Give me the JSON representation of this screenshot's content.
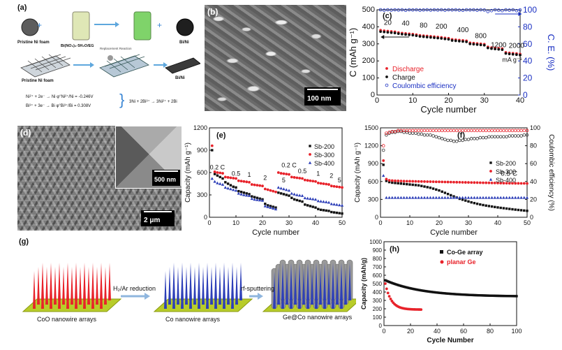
{
  "figure": {
    "panel_labels": [
      "(a)",
      "(b)",
      "(c)",
      "(d)",
      "(e)",
      "(f)",
      "(g)",
      "(h)"
    ]
  },
  "panel_a": {
    "row1": [
      "Pristine Ni foam",
      "Bi(NO₃)₃·5H₂O/EG",
      "Bi/Ni"
    ],
    "row2": [
      "Pristine Ni foam",
      "Replacement Reaction",
      "Bi/Ni"
    ],
    "eq1": "Ni²⁺ + 2e⁻ → Ni   φ°Ni²⁺/Ni = -0.246V",
    "eq2": "Bi³⁺ + 3e⁻ → Bi   φ°Bi³⁺/Bi = 0.308V",
    "eq3": "3Ni + 2Bi³⁺ → 3Ni²⁺ + 2Bi"
  },
  "panel_b": {
    "scalebar": "100 nm"
  },
  "panel_d": {
    "scalebar_inset": "500 nm",
    "scalebar": "2 μm"
  },
  "panel_g": {
    "labels": [
      "CoO nanowire arrays",
      "Co nanowire arrays",
      "Ge@Co nanowire arrays"
    ],
    "steps": [
      "H₂/Ar reduction",
      "rf-sputtering"
    ]
  },
  "colors": {
    "red": "#e8222a",
    "blue": "#2d3fb8",
    "ce_blue": "#1a2fc2",
    "black": "#111111",
    "green": "#b8cc2a"
  },
  "chart_data": [
    {
      "id": "c",
      "type": "scatter",
      "xlabel": "Cycle number",
      "ylabel": "C (mAh g⁻¹)",
      "y2label": "C. E. (%)",
      "xlim": [
        0,
        40
      ],
      "ylim": [
        0,
        500
      ],
      "y2lim": [
        0,
        100
      ],
      "xticks": [
        0,
        10,
        20,
        30,
        40
      ],
      "yticks": [
        0,
        100,
        200,
        300,
        400,
        500
      ],
      "y2ticks": [
        0,
        20,
        40,
        60,
        80,
        100
      ],
      "rate_labels": [
        "20",
        "40",
        "80",
        "200",
        "400",
        "800",
        "1200",
        "2000",
        "mA g⁻¹"
      ],
      "legend": [
        "Discharge",
        "Charge",
        "Coulombic efficiency"
      ],
      "series": [
        {
          "name": "Discharge",
          "values": [
            380,
            377,
            375,
            373,
            371,
            366,
            363,
            361,
            359,
            357,
            354,
            350,
            348,
            346,
            344,
            342,
            340,
            338,
            335,
            333,
            326,
            324,
            322,
            320,
            318,
            306,
            304,
            302,
            300,
            298,
            282,
            278,
            276,
            274,
            272,
            250,
            247,
            245,
            243,
            240
          ]
        },
        {
          "name": "Charge",
          "values": [
            376,
            374,
            372,
            370,
            368,
            364,
            361,
            359,
            357,
            355,
            352,
            348,
            346,
            344,
            342,
            340,
            338,
            336,
            333,
            331,
            324,
            322,
            320,
            318,
            316,
            304,
            302,
            300,
            298,
            296,
            280,
            276,
            274,
            272,
            270,
            248,
            245,
            243,
            241,
            238
          ]
        },
        {
          "name": "Coulombic efficiency",
          "values": [
            100,
            99.5,
            100,
            99.6,
            100,
            99.7,
            100,
            99.4,
            100,
            99.8,
            100,
            99.5,
            99.8,
            100,
            99.6,
            100,
            99.7,
            100,
            99.5,
            100,
            99.8,
            100,
            99.6,
            99.4,
            100,
            99.8,
            100,
            99.5,
            100,
            99.7,
            98,
            99,
            100,
            99.5,
            99,
            100,
            99.5,
            100,
            99,
            99.8
          ]
        }
      ]
    },
    {
      "id": "e",
      "type": "scatter",
      "xlabel": "Cycle number",
      "ylabel": "Capacity (mAh g⁻¹)",
      "xlim": [
        0,
        50
      ],
      "ylim": [
        0,
        1200
      ],
      "xticks": [
        0,
        10,
        20,
        30,
        40,
        50
      ],
      "yticks": [
        0,
        300,
        600,
        900,
        1200
      ],
      "rate_labels": [
        "0.2 C",
        "0.5",
        "1",
        "2",
        "5",
        "0.2 C",
        "0.5",
        "1",
        "2",
        "5"
      ],
      "series": [
        {
          "name": "Sb-200",
          "values": [
            900,
            580,
            560,
            540,
            520,
            470,
            450,
            430,
            410,
            400,
            350,
            340,
            330,
            320,
            310,
            280,
            270,
            260,
            250,
            240,
            180,
            160,
            150,
            140,
            130,
            330,
            320,
            310,
            300,
            290,
            260,
            240,
            230,
            220,
            210,
            170,
            160,
            150,
            140,
            130,
            110,
            100,
            95,
            90,
            85,
            70,
            65,
            60,
            55,
            50
          ]
        },
        {
          "name": "Sb-300",
          "values": [
            960,
            610,
            600,
            595,
            590,
            540,
            535,
            530,
            525,
            520,
            490,
            485,
            480,
            475,
            470,
            440,
            435,
            430,
            425,
            420,
            380,
            370,
            360,
            350,
            340,
            600,
            590,
            585,
            580,
            575,
            540,
            535,
            530,
            525,
            520,
            500,
            495,
            490,
            485,
            480,
            460,
            455,
            450,
            445,
            440,
            420,
            415,
            410,
            405,
            400
          ]
        },
        {
          "name": "Sb-400",
          "values": [
            520,
            480,
            460,
            450,
            440,
            400,
            390,
            380,
            370,
            360,
            320,
            310,
            300,
            295,
            290,
            250,
            240,
            235,
            230,
            225,
            150,
            140,
            130,
            120,
            110,
            400,
            390,
            380,
            370,
            360,
            320,
            310,
            300,
            295,
            290,
            260,
            255,
            250,
            245,
            240,
            220,
            215,
            210,
            205,
            200,
            180,
            175,
            170,
            165,
            160
          ]
        }
      ]
    },
    {
      "id": "f",
      "type": "scatter",
      "xlabel": "Cycle number",
      "ylabel": "Capacity (mAh g⁻¹)",
      "y2label": "Coulombic efficiency (%)",
      "xlim": [
        0,
        50
      ],
      "ylim": [
        0,
        1500
      ],
      "y2lim": [
        0,
        100
      ],
      "xticks": [
        0,
        10,
        20,
        30,
        40,
        50
      ],
      "yticks": [
        0,
        300,
        600,
        900,
        1200,
        1500
      ],
      "y2ticks": [
        0,
        20,
        40,
        60,
        80,
        100
      ],
      "annotation": "0.5 C",
      "series": [
        {
          "name": "Sb-200",
          "values": [
            880,
            610,
            590,
            580,
            575,
            570,
            565,
            560,
            555,
            550,
            545,
            540,
            535,
            525,
            515,
            505,
            495,
            480,
            465,
            450,
            430,
            410,
            390,
            370,
            350,
            330,
            310,
            295,
            280,
            265,
            250,
            238,
            226,
            215,
            205,
            196,
            188,
            180,
            172,
            165,
            158,
            152,
            146,
            140,
            134,
            128,
            123,
            118,
            113,
            108
          ]
        },
        {
          "name": "Sb-300",
          "values": [
            950,
            640,
            620,
            615,
            612,
            610,
            608,
            606,
            605,
            604,
            603,
            602,
            601,
            600,
            599,
            598,
            597,
            596,
            595,
            594,
            593,
            592,
            591,
            590,
            589,
            588,
            587,
            586,
            585,
            584,
            583,
            582,
            581,
            580,
            579,
            578,
            577,
            576,
            575,
            574,
            573,
            572,
            571,
            570,
            570,
            569,
            569,
            568,
            568,
            567
          ]
        },
        {
          "name": "Sb-400",
          "values": [
            700,
            330,
            330,
            330,
            330,
            330,
            330,
            330,
            330,
            330,
            330,
            330,
            330,
            330,
            330,
            330,
            330,
            330,
            330,
            330,
            330,
            330,
            330,
            330,
            330,
            330,
            330,
            330,
            330,
            330,
            330,
            330,
            330,
            330,
            330,
            330,
            330,
            330,
            330,
            330,
            330,
            330,
            330,
            330,
            330,
            330,
            330,
            330,
            330,
            330
          ]
        },
        {
          "name": "Sb-200 CE",
          "values": [
            75,
            92,
            94,
            95,
            95,
            96,
            96,
            95,
            95,
            94,
            94,
            94,
            93,
            93,
            92,
            92,
            92,
            91,
            90,
            89,
            88,
            87,
            86,
            86,
            85,
            85,
            86,
            86,
            87,
            87,
            88,
            88,
            88,
            89,
            89,
            89,
            90,
            90,
            90,
            90,
            90,
            90,
            90,
            91,
            91,
            91,
            91,
            91,
            92,
            92
          ]
        },
        {
          "name": "Sb-300 CE",
          "values": [
            80,
            94,
            95,
            96,
            96,
            97,
            97,
            97,
            97,
            97,
            97,
            97,
            97,
            97,
            97,
            97,
            97,
            97,
            97,
            97,
            97,
            97,
            97,
            97,
            97,
            97,
            97,
            97,
            97,
            97,
            97,
            97,
            97,
            97,
            97,
            97,
            97,
            97,
            97,
            97,
            97,
            97,
            97,
            97,
            97,
            97,
            97,
            97,
            97,
            97
          ]
        }
      ]
    },
    {
      "id": "h",
      "type": "scatter",
      "xlabel": "Cycle Number",
      "ylabel": "Capacity (mAh/g)",
      "xlim": [
        0,
        100
      ],
      "ylim": [
        0,
        1000
      ],
      "xticks": [
        0,
        20,
        40,
        60,
        80,
        100
      ],
      "yticks": [
        0,
        100,
        200,
        300,
        400,
        500,
        600,
        700,
        800,
        900,
        1000
      ],
      "legend": [
        "Co-Ge array",
        "planar Ge"
      ],
      "series": [
        {
          "name": "Co-Ge array",
          "x_end": 100,
          "start": 540,
          "end": 345
        },
        {
          "name": "planar Ge",
          "x_end": 28,
          "start": 500,
          "end": 190
        }
      ]
    }
  ]
}
